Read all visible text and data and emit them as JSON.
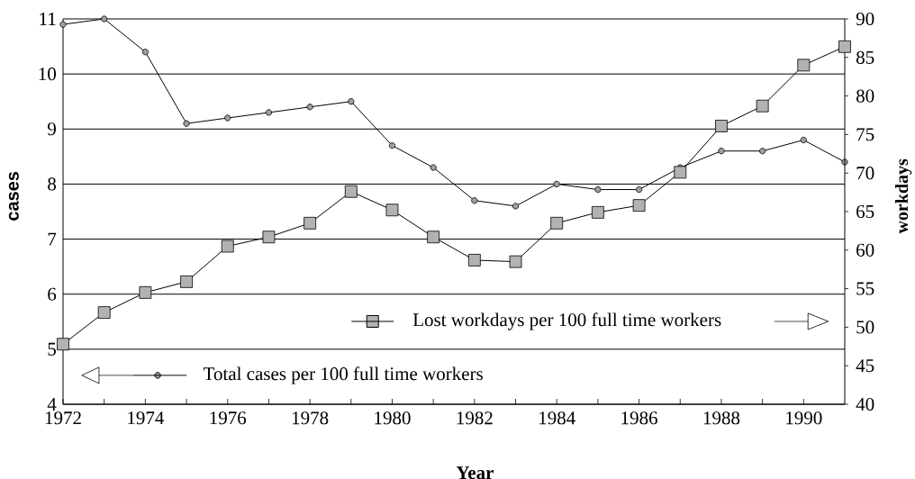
{
  "chart_data": {
    "type": "line",
    "xlabel": "Year",
    "ylabel": "cases",
    "y2label": "workdays",
    "x": [
      1972,
      1973,
      1974,
      1975,
      1976,
      1977,
      1978,
      1979,
      1980,
      1981,
      1982,
      1983,
      1984,
      1985,
      1986,
      1987,
      1988,
      1989,
      1990,
      1991
    ],
    "series": [
      {
        "name": "Total cases per 100 full time workers",
        "color": "#000000",
        "marker": "circle",
        "values": [
          10.9,
          11.0,
          10.4,
          9.1,
          9.2,
          9.3,
          9.4,
          9.5,
          8.7,
          8.3,
          7.7,
          7.6,
          8.0,
          7.9,
          7.9,
          8.3,
          8.6,
          8.6,
          8.8,
          8.4
        ]
      },
      {
        "name": "Lost workdays per 100 full time workers",
        "color": "#000000",
        "marker": "square",
        "axis": "y2",
        "values": [
          47.8,
          51.9,
          54.5,
          55.9,
          60.5,
          61.7,
          63.5,
          67.6,
          65.2,
          61.7,
          58.7,
          58.5,
          63.5,
          64.9,
          65.8,
          70.1,
          76.1,
          78.7,
          84.0,
          86.4
        ]
      }
    ],
    "xlim": [
      1972,
      1991
    ],
    "xticks": [
      1972,
      {
        "value": 1973,
        "label": null
      },
      1974,
      {
        "value": 1975,
        "label": null
      },
      1976,
      {
        "value": 1977,
        "label": null
      },
      1978,
      {
        "value": 1979,
        "label": null
      },
      1980,
      {
        "value": 1981,
        "label": null
      },
      1982,
      {
        "value": 1983,
        "label": null
      },
      1984,
      {
        "value": 1985,
        "label": null
      },
      1986,
      {
        "value": 1987,
        "label": null
      },
      1988,
      {
        "value": 1989,
        "label": null
      },
      1990
    ],
    "ylim": [
      4,
      11
    ],
    "yticks": [
      4,
      5,
      6,
      7,
      8,
      9,
      10,
      11
    ],
    "y2lim": [
      40,
      90
    ],
    "y2ticks": [
      40,
      45,
      50,
      55,
      60,
      65,
      70,
      75,
      80,
      85,
      90
    ],
    "grid": "y",
    "legend": "bottom"
  }
}
